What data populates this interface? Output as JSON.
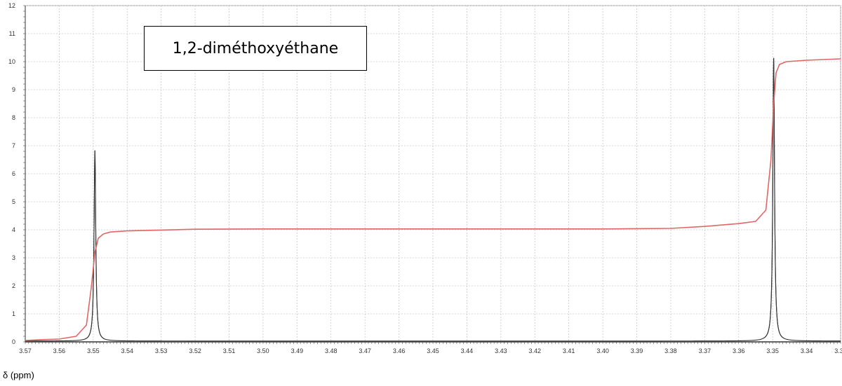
{
  "chart_data": {
    "type": "line",
    "title": "1,2-diméthoxyéthane",
    "xlabel": "δ (ppm)",
    "ylabel": "",
    "xlim": [
      3.57,
      3.33
    ],
    "ylim": [
      0,
      12
    ],
    "x_reversed": true,
    "grid": true,
    "x_ticks": [
      "3.57",
      "3.56",
      "3.55",
      "3.54",
      "3.53",
      "3.52",
      "3.51",
      "3.50",
      "3.49",
      "3.48",
      "3.47",
      "3.46",
      "3.45",
      "3.44",
      "3.43",
      "3.42",
      "3.41",
      "3.40",
      "3.39",
      "3.38",
      "3.37",
      "3.36",
      "3.35",
      "3.34",
      "3.33"
    ],
    "y_ticks": [
      "0",
      "1",
      "2",
      "3",
      "4",
      "5",
      "6",
      "7",
      "8",
      "9",
      "10",
      "11",
      "12"
    ],
    "series": [
      {
        "role": "spectrum",
        "color": "#333333",
        "peaks": [
          {
            "x": 3.5495,
            "height": 6.8,
            "width": 0.0003
          },
          {
            "x": 3.3497,
            "height": 10.1,
            "width": 0.0003
          }
        ]
      },
      {
        "role": "integral",
        "color": "#e06666",
        "points": [
          [
            3.57,
            0.05
          ],
          [
            3.565,
            0.08
          ],
          [
            3.56,
            0.1
          ],
          [
            3.555,
            0.2
          ],
          [
            3.552,
            0.6
          ],
          [
            3.5505,
            2.0
          ],
          [
            3.5495,
            3.2
          ],
          [
            3.5485,
            3.7
          ],
          [
            3.547,
            3.85
          ],
          [
            3.545,
            3.92
          ],
          [
            3.54,
            3.96
          ],
          [
            3.53,
            3.99
          ],
          [
            3.52,
            4.02
          ],
          [
            3.5,
            4.03
          ],
          [
            3.45,
            4.03
          ],
          [
            3.4,
            4.03
          ],
          [
            3.38,
            4.05
          ],
          [
            3.37,
            4.12
          ],
          [
            3.36,
            4.22
          ],
          [
            3.355,
            4.3
          ],
          [
            3.352,
            4.7
          ],
          [
            3.3505,
            6.5
          ],
          [
            3.3497,
            8.5
          ],
          [
            3.349,
            9.6
          ],
          [
            3.348,
            9.9
          ],
          [
            3.346,
            10.0
          ],
          [
            3.34,
            10.05
          ],
          [
            3.33,
            10.1
          ]
        ]
      }
    ]
  }
}
